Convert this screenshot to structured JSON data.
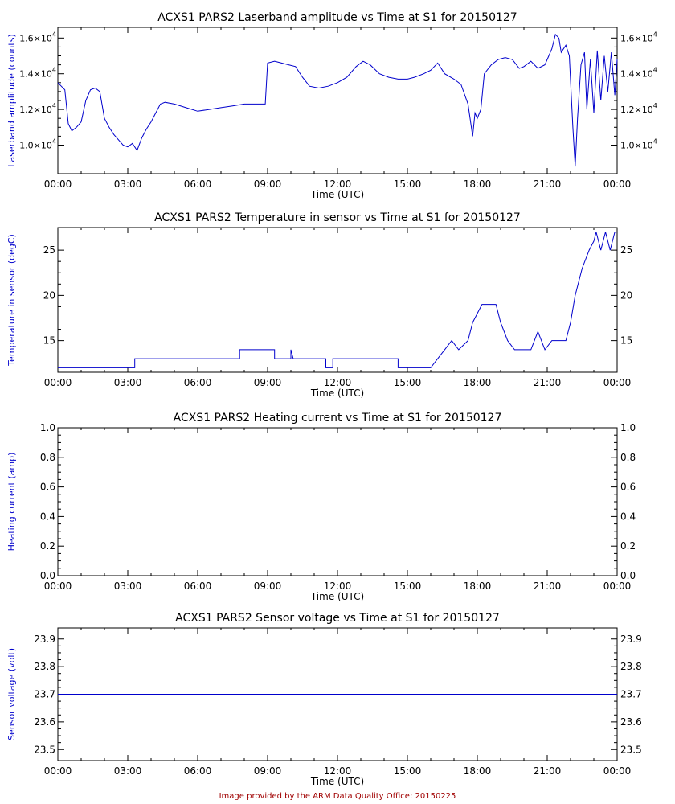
{
  "footer": "Image provided by the ARM Data Quality Office: 20150225",
  "chart_data": [
    {
      "type": "line",
      "title": "ACXS1 PARS2 Laserband amplitude vs Time at S1 for 20150127",
      "xlabel": "Time (UTC)",
      "ylabel": "Laserband amplitude (counts)",
      "x_tick_labels": [
        "00:00",
        "03:00",
        "06:00",
        "09:00",
        "12:00",
        "15:00",
        "18:00",
        "21:00",
        "00:00"
      ],
      "xlim_hours": [
        0,
        24
      ],
      "ylim": [
        8400,
        16600
      ],
      "y_ticks": [
        10000,
        12000,
        14000,
        16000
      ],
      "y_tick_labels": [
        {
          "mantissa": "1.0",
          "exponent": "4"
        },
        {
          "mantissa": "1.2",
          "exponent": "4"
        },
        {
          "mantissa": "1.4",
          "exponent": "4"
        },
        {
          "mantissa": "1.6",
          "exponent": "4"
        }
      ],
      "color": "#0000cc",
      "series": [
        {
          "values": [
            [
              0.0,
              13500
            ],
            [
              0.15,
              13300
            ],
            [
              0.3,
              13100
            ],
            [
              0.45,
              11200
            ],
            [
              0.6,
              10800
            ],
            [
              0.8,
              11000
            ],
            [
              1.0,
              11300
            ],
            [
              1.2,
              12500
            ],
            [
              1.4,
              13100
            ],
            [
              1.6,
              13200
            ],
            [
              1.8,
              13000
            ],
            [
              2.0,
              11500
            ],
            [
              2.2,
              11000
            ],
            [
              2.4,
              10600
            ],
            [
              2.6,
              10300
            ],
            [
              2.8,
              10000
            ],
            [
              3.0,
              9900
            ],
            [
              3.2,
              10100
            ],
            [
              3.4,
              9700
            ],
            [
              3.6,
              10400
            ],
            [
              3.8,
              10900
            ],
            [
              4.0,
              11300
            ],
            [
              4.2,
              11800
            ],
            [
              4.4,
              12300
            ],
            [
              4.6,
              12400
            ],
            [
              5.0,
              12300
            ],
            [
              5.5,
              12100
            ],
            [
              6.0,
              11900
            ],
            [
              6.5,
              12000
            ],
            [
              7.0,
              12100
            ],
            [
              7.5,
              12200
            ],
            [
              8.0,
              12300
            ],
            [
              8.5,
              12300
            ],
            [
              8.9,
              12300
            ],
            [
              9.0,
              14600
            ],
            [
              9.3,
              14700
            ],
            [
              9.6,
              14600
            ],
            [
              9.9,
              14500
            ],
            [
              10.2,
              14400
            ],
            [
              10.5,
              13800
            ],
            [
              10.8,
              13300
            ],
            [
              11.2,
              13200
            ],
            [
              11.6,
              13300
            ],
            [
              12.0,
              13500
            ],
            [
              12.4,
              13800
            ],
            [
              12.8,
              14400
            ],
            [
              13.1,
              14700
            ],
            [
              13.4,
              14500
            ],
            [
              13.8,
              14000
            ],
            [
              14.2,
              13800
            ],
            [
              14.6,
              13700
            ],
            [
              15.0,
              13700
            ],
            [
              15.3,
              13800
            ],
            [
              15.7,
              14000
            ],
            [
              16.0,
              14200
            ],
            [
              16.3,
              14600
            ],
            [
              16.6,
              14000
            ],
            [
              17.0,
              13700
            ],
            [
              17.3,
              13400
            ],
            [
              17.6,
              12300
            ],
            [
              17.8,
              10500
            ],
            [
              17.9,
              11800
            ],
            [
              18.0,
              11500
            ],
            [
              18.15,
              12000
            ],
            [
              18.3,
              14000
            ],
            [
              18.6,
              14500
            ],
            [
              18.9,
              14800
            ],
            [
              19.2,
              14900
            ],
            [
              19.5,
              14800
            ],
            [
              19.8,
              14300
            ],
            [
              20.0,
              14400
            ],
            [
              20.3,
              14700
            ],
            [
              20.6,
              14300
            ],
            [
              20.9,
              14500
            ],
            [
              21.0,
              14800
            ],
            [
              21.2,
              15400
            ],
            [
              21.35,
              16200
            ],
            [
              21.5,
              16000
            ],
            [
              21.6,
              15200
            ],
            [
              21.8,
              15600
            ],
            [
              21.95,
              15000
            ],
            [
              22.1,
              11000
            ],
            [
              22.2,
              8800
            ],
            [
              22.3,
              11500
            ],
            [
              22.45,
              14500
            ],
            [
              22.6,
              15200
            ],
            [
              22.7,
              12000
            ],
            [
              22.85,
              14800
            ],
            [
              23.0,
              11800
            ],
            [
              23.15,
              15300
            ],
            [
              23.3,
              12500
            ],
            [
              23.45,
              15000
            ],
            [
              23.6,
              13000
            ],
            [
              23.75,
              15200
            ],
            [
              23.9,
              12800
            ],
            [
              24.0,
              14800
            ]
          ]
        }
      ]
    },
    {
      "type": "line",
      "title": "ACXS1 PARS2 Temperature in sensor vs Time at S1 for 20150127",
      "xlabel": "Time (UTC)",
      "ylabel": "Temperature in sensor (degC)",
      "x_tick_labels": [
        "00:00",
        "03:00",
        "06:00",
        "09:00",
        "12:00",
        "15:00",
        "18:00",
        "21:00",
        "00:00"
      ],
      "xlim_hours": [
        0,
        24
      ],
      "ylim": [
        11.5,
        27.5
      ],
      "y_ticks": [
        15,
        20,
        25
      ],
      "y_tick_labels": [
        "15",
        "20",
        "25"
      ],
      "color": "#0000cc",
      "series": [
        {
          "values": [
            [
              0.0,
              12
            ],
            [
              3.3,
              12
            ],
            [
              3.3,
              13
            ],
            [
              7.8,
              13
            ],
            [
              7.8,
              14
            ],
            [
              9.3,
              14
            ],
            [
              9.3,
              13
            ],
            [
              10.0,
              13
            ],
            [
              10.0,
              14
            ],
            [
              10.1,
              13
            ],
            [
              11.5,
              13
            ],
            [
              11.5,
              12
            ],
            [
              11.8,
              12
            ],
            [
              11.8,
              13
            ],
            [
              14.6,
              13
            ],
            [
              14.6,
              12
            ],
            [
              16.0,
              12
            ],
            [
              16.3,
              13
            ],
            [
              16.6,
              14
            ],
            [
              16.9,
              15
            ],
            [
              17.2,
              14
            ],
            [
              17.6,
              15
            ],
            [
              17.8,
              17
            ],
            [
              18.0,
              18
            ],
            [
              18.2,
              19
            ],
            [
              18.8,
              19
            ],
            [
              19.0,
              17
            ],
            [
              19.3,
              15
            ],
            [
              19.6,
              14
            ],
            [
              20.3,
              14
            ],
            [
              20.6,
              16
            ],
            [
              20.9,
              14
            ],
            [
              21.2,
              15
            ],
            [
              21.8,
              15
            ],
            [
              22.0,
              17
            ],
            [
              22.2,
              20
            ],
            [
              22.5,
              23
            ],
            [
              22.8,
              25
            ],
            [
              23.0,
              26
            ],
            [
              23.1,
              27
            ],
            [
              23.3,
              25
            ],
            [
              23.5,
              27
            ],
            [
              23.7,
              25
            ],
            [
              23.9,
              27
            ],
            [
              24.0,
              27
            ]
          ]
        }
      ]
    },
    {
      "type": "line",
      "title": "ACXS1 PARS2 Heating current vs Time at S1 for 20150127",
      "xlabel": "Time (UTC)",
      "ylabel": "Heating current (amp)",
      "x_tick_labels": [
        "00:00",
        "03:00",
        "06:00",
        "09:00",
        "12:00",
        "15:00",
        "18:00",
        "21:00",
        "00:00"
      ],
      "xlim_hours": [
        0,
        24
      ],
      "ylim": [
        0,
        1
      ],
      "y_ticks": [
        0,
        0.2,
        0.4,
        0.6,
        0.8,
        1.0
      ],
      "y_tick_labels": [
        "0.0",
        "0.2",
        "0.4",
        "0.6",
        "0.8",
        "1.0"
      ],
      "color": "#0000cc",
      "series": [
        {
          "values": []
        }
      ]
    },
    {
      "type": "line",
      "title": "ACXS1 PARS2 Sensor voltage vs Time at S1 for 20150127",
      "xlabel": "Time (UTC)",
      "ylabel": "Sensor voltage (volt)",
      "x_tick_labels": [
        "00:00",
        "03:00",
        "06:00",
        "09:00",
        "12:00",
        "15:00",
        "18:00",
        "21:00",
        "00:00"
      ],
      "xlim_hours": [
        0,
        24
      ],
      "ylim": [
        23.46,
        23.94
      ],
      "y_ticks": [
        23.5,
        23.6,
        23.7,
        23.8,
        23.9
      ],
      "y_tick_labels": [
        "23.5",
        "23.6",
        "23.7",
        "23.8",
        "23.9"
      ],
      "color": "#0000cc",
      "series": [
        {
          "values": [
            [
              0.0,
              23.7
            ],
            [
              24.0,
              23.7
            ]
          ]
        }
      ]
    }
  ]
}
